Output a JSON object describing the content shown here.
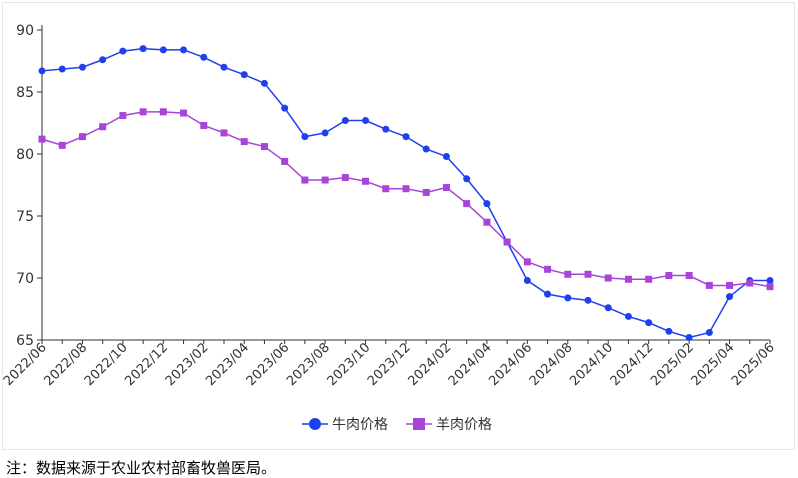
{
  "footnote": "注：数据来源于农业农村部畜牧兽医局。",
  "chart_data": {
    "type": "line",
    "title": "",
    "xlabel": "",
    "ylabel": "",
    "ylim": [
      65,
      90
    ],
    "yticks": [
      65,
      70,
      75,
      80,
      85,
      90
    ],
    "legend_position": "bottom",
    "x": [
      "2022/06",
      "2022/07",
      "2022/08",
      "2022/09",
      "2022/10",
      "2022/11",
      "2022/12",
      "2023/01",
      "2023/02",
      "2023/03",
      "2023/04",
      "2023/05",
      "2023/06",
      "2023/07",
      "2023/08",
      "2023/09",
      "2023/10",
      "2023/11",
      "2023/12",
      "2024/01",
      "2024/02",
      "2024/03",
      "2024/04",
      "2024/05",
      "2024/06",
      "2024/07",
      "2024/08",
      "2024/09",
      "2024/10",
      "2024/11",
      "2024/12",
      "2025/01",
      "2025/02",
      "2025/03",
      "2025/04",
      "2025/05",
      "2025/06"
    ],
    "series": [
      {
        "name": "牛肉价格",
        "color": "#1f3ff0",
        "marker": "circle",
        "values": [
          86.7,
          86.85,
          87.0,
          87.6,
          88.3,
          88.5,
          88.4,
          88.4,
          87.8,
          87.0,
          86.4,
          85.7,
          83.7,
          81.4,
          81.7,
          82.7,
          82.7,
          82.0,
          81.4,
          80.4,
          79.8,
          78.0,
          76.0,
          72.9,
          69.8,
          68.7,
          68.4,
          68.2,
          67.6,
          66.9,
          66.4,
          65.7,
          65.2,
          65.6,
          68.5,
          69.8,
          69.8
        ]
      },
      {
        "name": "羊肉价格",
        "color": "#a845d8",
        "marker": "square",
        "values": [
          81.2,
          80.7,
          81.4,
          82.2,
          83.1,
          83.4,
          83.4,
          83.3,
          82.3,
          81.7,
          81.0,
          80.6,
          79.4,
          77.9,
          77.9,
          78.1,
          77.8,
          77.2,
          77.2,
          76.9,
          77.3,
          76.0,
          74.5,
          72.9,
          71.3,
          70.7,
          70.3,
          70.3,
          70.0,
          69.9,
          69.9,
          70.2,
          70.2,
          69.4,
          69.4,
          69.6,
          69.3
        ]
      }
    ]
  }
}
